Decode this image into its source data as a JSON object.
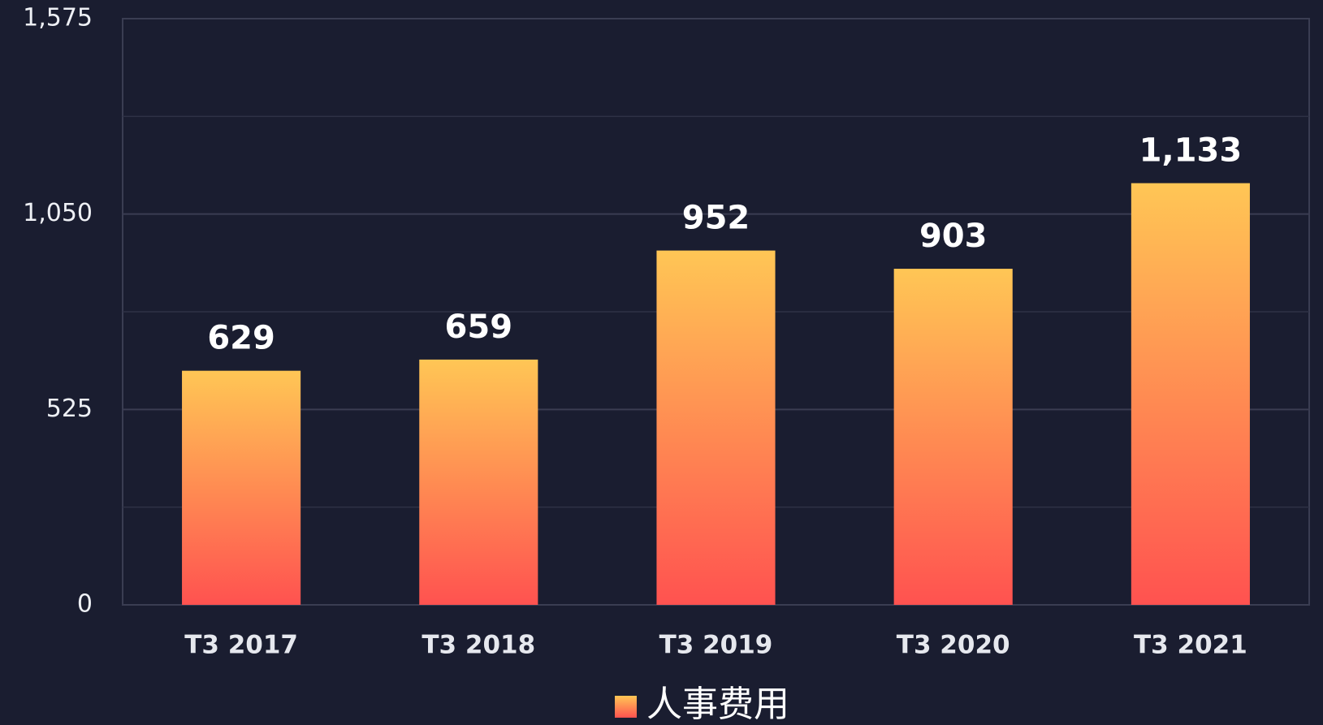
{
  "chart_data": {
    "type": "bar",
    "categories": [
      "T3 2017",
      "T3 2018",
      "T3 2019",
      "T3 2020",
      "T3 2021"
    ],
    "series": [
      {
        "name": "人事费用",
        "gradient": [
          "#ffc655",
          "#ff5250"
        ],
        "values": [
          629,
          659,
          952,
          903,
          1133
        ],
        "value_labels": [
          "629",
          "659",
          "952",
          "903",
          "1,133"
        ]
      }
    ],
    "ylim": [
      0,
      1575
    ],
    "yticks": [
      0,
      525,
      {
        "value": 1050,
        "label": "1,050"
      },
      {
        "value": 1575,
        "label": "1,575"
      }
    ],
    "minor_yticks": [
      262.5,
      787.5,
      1312.5
    ],
    "grid": true,
    "legend": "bottom"
  }
}
